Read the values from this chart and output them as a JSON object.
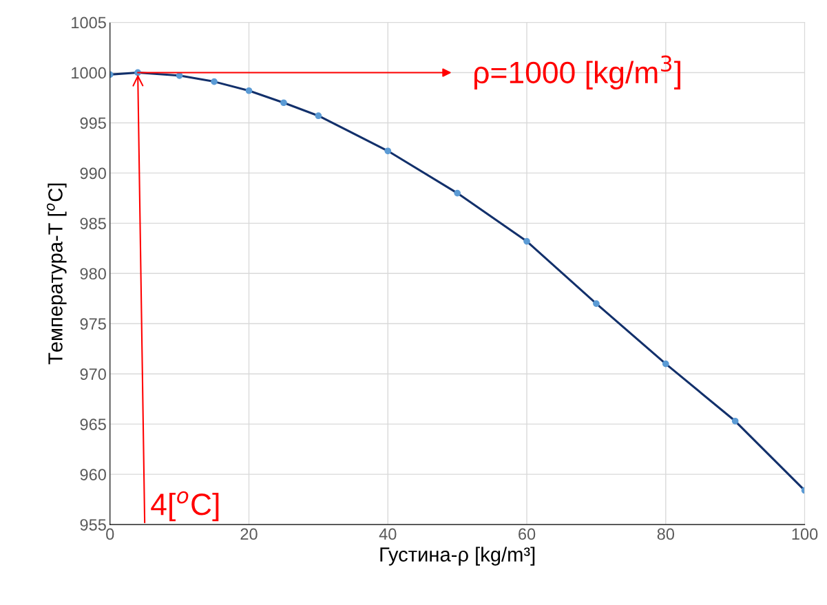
{
  "chart_data": {
    "type": "line",
    "xlabel": "Густина-ρ [kg/m³]",
    "ylabel": "Температура-T [$^{o}$C]",
    "x": [
      0,
      4,
      10,
      15,
      20,
      25,
      30,
      40,
      50,
      60,
      70,
      80,
      90,
      100
    ],
    "series": [
      {
        "color": "#12306b",
        "values": [
          999.8,
          1000,
          999.7,
          999.1,
          998.2,
          997.0,
          995.7,
          992.2,
          988.0,
          983.2,
          977.0,
          971.0,
          965.3,
          958.4
        ]
      }
    ],
    "xlim": [
      0,
      100
    ],
    "xticks": [
      0,
      20,
      40,
      60,
      80,
      100
    ],
    "ylim": [
      955,
      1005
    ],
    "yticks": [
      955,
      960,
      965,
      970,
      975,
      980,
      985,
      990,
      995,
      1000,
      1005
    ],
    "grid": true,
    "marker": "circle",
    "line_style": "solid",
    "annotations": [
      {
        "text": "ρ=1000 [kg/m$^{3}$]",
        "x": 4,
        "y": 1000
      },
      {
        "text": "4[$^{o}$C]",
        "x": 4,
        "y": 1000
      }
    ]
  }
}
